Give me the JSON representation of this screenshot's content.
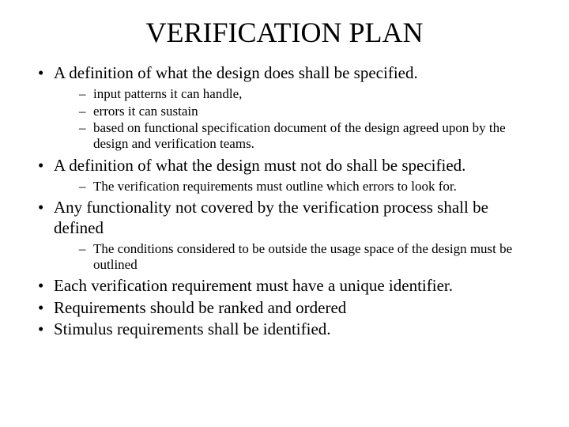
{
  "title": "VERIFICATION PLAN",
  "bullets": [
    {
      "text": "A definition of what the design does shall be specified.",
      "subs": [
        "input patterns it can handle,",
        "errors it can sustain",
        "based on functional specification document of the design agreed upon by the design and verification teams."
      ]
    },
    {
      "text": "A definition of what the design must not do shall be specified.",
      "subs": [
        "The verification requirements must outline which errors to look for."
      ]
    },
    {
      "text": "Any functionality not covered by the verification process shall be defined",
      "subs": [
        "The conditions considered to be outside the usage space of the design must be outlined"
      ]
    },
    {
      "text": "Each verification requirement must have a unique identifier.",
      "subs": []
    },
    {
      "text": "Requirements should be ranked and ordered",
      "subs": []
    },
    {
      "text": "Stimulus requirements shall be identified.",
      "subs": []
    }
  ]
}
